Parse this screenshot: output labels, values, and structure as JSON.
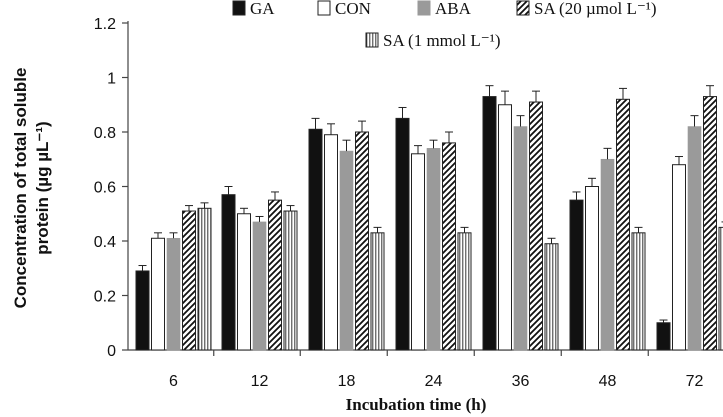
{
  "chart_data": {
    "type": "bar",
    "title": "",
    "xlabel": "Incubation time (h)",
    "ylabel_line1": "Concentration of total soluble",
    "ylabel_line2": "protein (µg µL⁻¹)",
    "categories": [
      "6",
      "12",
      "18",
      "24",
      "36",
      "48",
      "72"
    ],
    "ylim": [
      0,
      1.2
    ],
    "yticks": [
      "0",
      "0.2",
      "0.4",
      "0.6",
      "0.8",
      "1",
      "1.2"
    ],
    "grid": false,
    "legend_position": "top",
    "series": [
      {
        "name": "GA",
        "pattern": "solid-black",
        "values": [
          0.29,
          0.57,
          0.81,
          0.85,
          0.93,
          0.55,
          0.1
        ],
        "errors": [
          0.02,
          0.03,
          0.04,
          0.04,
          0.04,
          0.03,
          0.01
        ]
      },
      {
        "name": "CON",
        "pattern": "white",
        "values": [
          0.41,
          0.5,
          0.79,
          0.72,
          0.9,
          0.6,
          0.68
        ],
        "errors": [
          0.02,
          0.02,
          0.04,
          0.03,
          0.05,
          0.03,
          0.03
        ]
      },
      {
        "name": "ABA",
        "pattern": "solid-gray",
        "values": [
          0.41,
          0.47,
          0.73,
          0.74,
          0.82,
          0.7,
          0.82
        ],
        "errors": [
          0.02,
          0.02,
          0.04,
          0.03,
          0.04,
          0.04,
          0.04
        ]
      },
      {
        "name": "SA (20 µmol L⁻¹)",
        "pattern": "diagonal-stripes",
        "values": [
          0.51,
          0.55,
          0.8,
          0.76,
          0.91,
          0.92,
          0.93
        ],
        "errors": [
          0.02,
          0.03,
          0.04,
          0.04,
          0.04,
          0.04,
          0.04
        ]
      },
      {
        "name": "SA (1 mmol L⁻¹)",
        "pattern": "vertical-stripes",
        "values": [
          0.52,
          0.51,
          0.43,
          0.43,
          0.39,
          0.43,
          0.45
        ],
        "errors": [
          0.02,
          0.02,
          0.02,
          0.02,
          0.02,
          0.02,
          0.02
        ]
      }
    ]
  }
}
